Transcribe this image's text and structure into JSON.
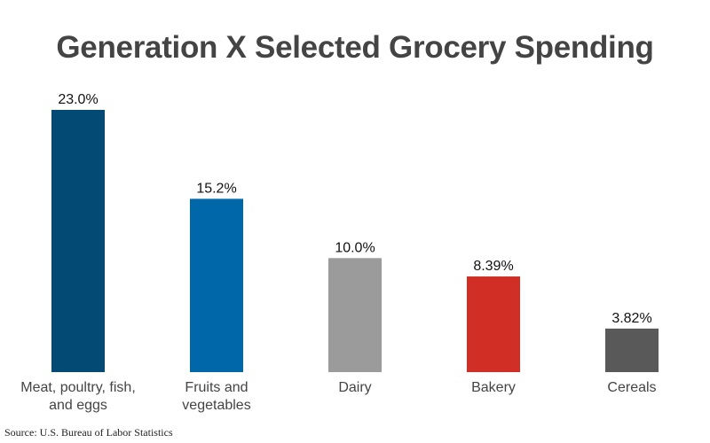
{
  "chart_data": {
    "type": "bar",
    "title": "Generation X Selected Grocery Spending",
    "categories": [
      "Meat, poultry, fish, and eggs",
      "Fruits and vegetables",
      "Dairy",
      "Bakery",
      "Cereals"
    ],
    "category_lines": [
      [
        "Meat, poultry, fish,",
        "and eggs"
      ],
      [
        "Fruits and",
        "vegetables"
      ],
      [
        "Dairy"
      ],
      [
        "Bakery"
      ],
      [
        "Cereals"
      ]
    ],
    "values": [
      23.0,
      15.2,
      10.0,
      8.39,
      3.82
    ],
    "data_labels": [
      "23.0%",
      "15.2%",
      "10.0%",
      "8.39%",
      "3.82%"
    ],
    "colors": [
      "#034a75",
      "#0068a8",
      "#9b9b9b",
      "#d12e26",
      "#595959"
    ],
    "xlabel": "",
    "ylabel": "",
    "ylim": [
      0,
      23.0
    ],
    "grid": false,
    "axes_visible": false
  },
  "source": "Source: U.S. Bureau of Labor Statistics"
}
